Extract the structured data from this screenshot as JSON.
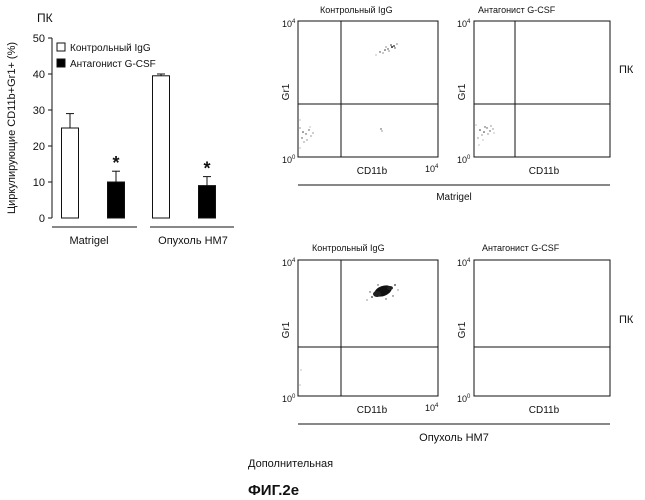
{
  "bar_panel": {
    "corner_label": "ПК",
    "ylabel": "Циркулирующие CD11b+Gr1+ (%)",
    "yticks": [
      "0",
      "10",
      "20",
      "30",
      "40",
      "50"
    ],
    "legend": [
      "Контрольный IgG",
      "Антагонист G-CSF"
    ],
    "group_labels": [
      "Matrigel",
      "Опухоль HM7"
    ],
    "significance_mark": "*"
  },
  "chart_data": {
    "type": "bar",
    "ylabel": "Циркулирующие CD11b+Gr1+ (%)",
    "ylim": [
      0,
      50
    ],
    "categories": [
      "Matrigel",
      "Опухоль HM7"
    ],
    "series": [
      {
        "name": "Контрольный IgG",
        "values": [
          25,
          39.5
        ],
        "errors": [
          4,
          0.5
        ],
        "color": "#ffffff"
      },
      {
        "name": "Антагонист G-CSF",
        "values": [
          10,
          9
        ],
        "errors": [
          3,
          2.5
        ],
        "color": "#000000"
      }
    ],
    "legend_position": "top-left",
    "grid": false
  },
  "flow_panels": {
    "axis_x": "CD11b",
    "axis_y": "Gr1",
    "tick_low": "10",
    "tick_low_exp": "0",
    "tick_high": "10",
    "tick_high_exp": "4",
    "side_label": "ПК",
    "top_titles": [
      "Контрольный IgG",
      "Антагонист G-CSF"
    ],
    "top_group": "Matrigel",
    "bottom_titles": [
      "Контрольный IgG",
      "Антагонист G-CSF"
    ],
    "bottom_group": "Опухоль HM7"
  },
  "footer": {
    "note": "Дополнительная",
    "figure_label": "ФИГ.2е"
  }
}
